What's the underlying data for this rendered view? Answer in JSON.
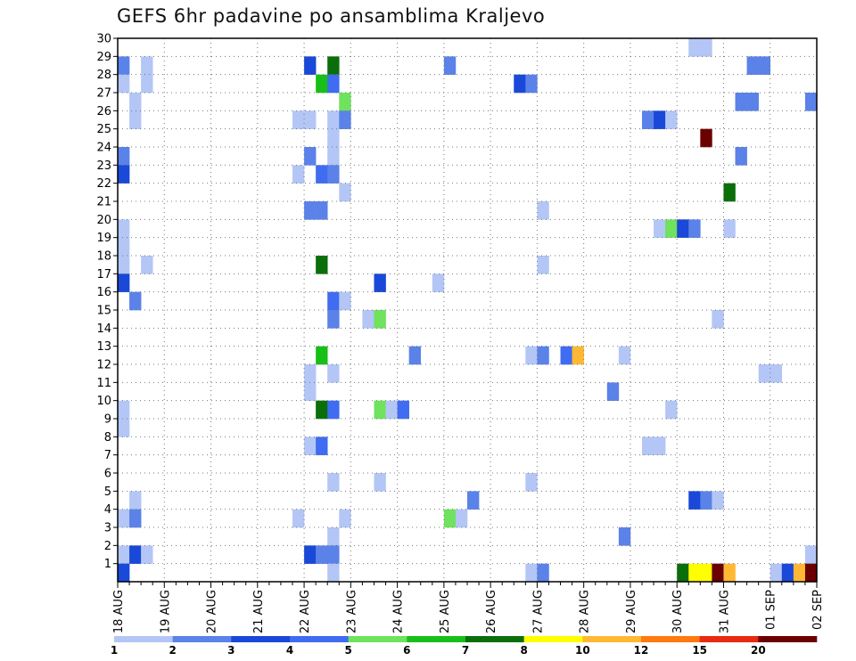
{
  "chart_data": {
    "type": "heatmap",
    "title": "GEFS 6hr padavine po ansamblima Kraljevo",
    "xlabel": "",
    "ylabel": "",
    "x_ticks": [
      "18 AUG",
      "19 AUG",
      "20 AUG",
      "21 AUG",
      "22 AUG",
      "23 AUG",
      "24 AUG",
      "25 AUG",
      "26 AUG",
      "27 AUG",
      "28 AUG",
      "29 AUG",
      "30 AUG",
      "31 AUG",
      "01 SEP",
      "02 SEP"
    ],
    "y_ticks": [
      "1",
      "2",
      "3",
      "4",
      "5",
      "6",
      "7",
      "8",
      "9",
      "10",
      "11",
      "12",
      "13",
      "14",
      "15",
      "16",
      "17",
      "18",
      "19",
      "20",
      "21",
      "22",
      "23",
      "24",
      "25",
      "26",
      "27",
      "28",
      "29",
      "30"
    ],
    "x_unit": "6-hour step from 18 AUG 00Z",
    "y_range": [
      0,
      30
    ],
    "grid": true,
    "colorbar": {
      "labels": [
        "1",
        "2",
        "3",
        "4",
        "5",
        "6",
        "7",
        "8",
        "10",
        "12",
        "15",
        "20"
      ],
      "colors": [
        "#b3c6f5",
        "#5a82e8",
        "#1a48d8",
        "#3f6cf0",
        "#6fe25e",
        "#18bf18",
        "#0a6e0a",
        "#ffff00",
        "#ffb833",
        "#ff7a10",
        "#e82a10",
        "#6a0000"
      ],
      "bins": [
        1,
        2,
        3,
        4,
        5,
        6,
        7,
        8,
        10,
        12,
        15,
        20
      ]
    },
    "cells": [
      {
        "x": 0,
        "y": 29,
        "v": 2.5
      },
      {
        "x": 0,
        "y": 28,
        "v": 1.5
      },
      {
        "x": 0,
        "y": 24,
        "v": 2.5
      },
      {
        "x": 0,
        "y": 23,
        "v": 3.5
      },
      {
        "x": 0,
        "y": 20,
        "v": 1.5
      },
      {
        "x": 0,
        "y": 19,
        "v": 1.5
      },
      {
        "x": 0,
        "y": 18,
        "v": 1.5
      },
      {
        "x": 0,
        "y": 17,
        "v": 3.5
      },
      {
        "x": 0,
        "y": 10,
        "v": 1.5
      },
      {
        "x": 0,
        "y": 9,
        "v": 1.5
      },
      {
        "x": 0,
        "y": 4,
        "v": 1.5
      },
      {
        "x": 0,
        "y": 2,
        "v": 1.5
      },
      {
        "x": 0,
        "y": 1,
        "v": 3.5
      },
      {
        "x": 1,
        "y": 27,
        "v": 1.5
      },
      {
        "x": 1,
        "y": 26,
        "v": 1.5
      },
      {
        "x": 1,
        "y": 16,
        "v": 2.5
      },
      {
        "x": 1,
        "y": 5,
        "v": 1.5
      },
      {
        "x": 1,
        "y": 4,
        "v": 2.5
      },
      {
        "x": 1,
        "y": 2,
        "v": 3.5
      },
      {
        "x": 2,
        "y": 29,
        "v": 1.5
      },
      {
        "x": 2,
        "y": 28,
        "v": 1.5
      },
      {
        "x": 2,
        "y": 18,
        "v": 1.5
      },
      {
        "x": 2,
        "y": 2,
        "v": 1.5
      },
      {
        "x": 15,
        "y": 26,
        "v": 1.5
      },
      {
        "x": 15,
        "y": 23,
        "v": 1.5
      },
      {
        "x": 15,
        "y": 4,
        "v": 1.5
      },
      {
        "x": 16,
        "y": 26,
        "v": 1.5
      },
      {
        "x": 16,
        "y": 21,
        "v": 2.5
      },
      {
        "x": 16,
        "y": 24,
        "v": 2.5
      },
      {
        "x": 16,
        "y": 29,
        "v": 3.5
      },
      {
        "x": 16,
        "y": 12,
        "v": 1.5
      },
      {
        "x": 16,
        "y": 11,
        "v": 1.5
      },
      {
        "x": 16,
        "y": 8,
        "v": 1.5
      },
      {
        "x": 16,
        "y": 2,
        "v": 3.5
      },
      {
        "x": 17,
        "y": 28,
        "v": 6.5
      },
      {
        "x": 17,
        "y": 23,
        "v": 4.5
      },
      {
        "x": 17,
        "y": 21,
        "v": 2.5
      },
      {
        "x": 17,
        "y": 18,
        "v": 7.5
      },
      {
        "x": 17,
        "y": 13,
        "v": 6.5
      },
      {
        "x": 17,
        "y": 10,
        "v": 7.5
      },
      {
        "x": 17,
        "y": 8,
        "v": 4.5
      },
      {
        "x": 17,
        "y": 2,
        "v": 2.5
      },
      {
        "x": 18,
        "y": 29,
        "v": 7.5
      },
      {
        "x": 18,
        "y": 28,
        "v": 4.5
      },
      {
        "x": 18,
        "y": 26,
        "v": 1.5
      },
      {
        "x": 18,
        "y": 25,
        "v": 1.5
      },
      {
        "x": 18,
        "y": 24,
        "v": 1.5
      },
      {
        "x": 18,
        "y": 23,
        "v": 2.5
      },
      {
        "x": 18,
        "y": 16,
        "v": 4.5
      },
      {
        "x": 18,
        "y": 15,
        "v": 2.5
      },
      {
        "x": 18,
        "y": 12,
        "v": 1.5
      },
      {
        "x": 18,
        "y": 10,
        "v": 4.5
      },
      {
        "x": 18,
        "y": 6,
        "v": 1.5
      },
      {
        "x": 18,
        "y": 3,
        "v": 1.5
      },
      {
        "x": 18,
        "y": 2,
        "v": 2.5
      },
      {
        "x": 18,
        "y": 1,
        "v": 1.5
      },
      {
        "x": 19,
        "y": 27,
        "v": 5.5
      },
      {
        "x": 19,
        "y": 26,
        "v": 2.5
      },
      {
        "x": 19,
        "y": 22,
        "v": 1.5
      },
      {
        "x": 19,
        "y": 16,
        "v": 1.5
      },
      {
        "x": 19,
        "y": 4,
        "v": 1.5
      },
      {
        "x": 21,
        "y": 15,
        "v": 1.5
      },
      {
        "x": 22,
        "y": 17,
        "v": 3.5
      },
      {
        "x": 22,
        "y": 15,
        "v": 5.5
      },
      {
        "x": 22,
        "y": 10,
        "v": 5.5
      },
      {
        "x": 22,
        "y": 6,
        "v": 1.5
      },
      {
        "x": 23,
        "y": 10,
        "v": 1.5
      },
      {
        "x": 24,
        "y": 10,
        "v": 4.5
      },
      {
        "x": 25,
        "y": 13,
        "v": 2.5
      },
      {
        "x": 27,
        "y": 17,
        "v": 1.5
      },
      {
        "x": 28,
        "y": 29,
        "v": 2.5
      },
      {
        "x": 28,
        "y": 4,
        "v": 5.5
      },
      {
        "x": 29,
        "y": 4,
        "v": 1.5
      },
      {
        "x": 30,
        "y": 5,
        "v": 2.5
      },
      {
        "x": 34,
        "y": 28,
        "v": 3.5
      },
      {
        "x": 35,
        "y": 28,
        "v": 2.5
      },
      {
        "x": 35,
        "y": 13,
        "v": 1.5
      },
      {
        "x": 35,
        "y": 6,
        "v": 1.5
      },
      {
        "x": 35,
        "y": 1,
        "v": 1.5
      },
      {
        "x": 36,
        "y": 21,
        "v": 1.5
      },
      {
        "x": 36,
        "y": 18,
        "v": 1.5
      },
      {
        "x": 36,
        "y": 13,
        "v": 2.5
      },
      {
        "x": 36,
        "y": 1,
        "v": 2.5
      },
      {
        "x": 38,
        "y": 13,
        "v": 4.5
      },
      {
        "x": 39,
        "y": 13,
        "v": 11
      },
      {
        "x": 42,
        "y": 11,
        "v": 2.5
      },
      {
        "x": 43,
        "y": 13,
        "v": 1.5
      },
      {
        "x": 43,
        "y": 3,
        "v": 2.5
      },
      {
        "x": 45,
        "y": 26,
        "v": 2.5
      },
      {
        "x": 45,
        "y": 8,
        "v": 1.5
      },
      {
        "x": 46,
        "y": 26,
        "v": 3.5
      },
      {
        "x": 46,
        "y": 20,
        "v": 1.5
      },
      {
        "x": 46,
        "y": 8,
        "v": 1.5
      },
      {
        "x": 47,
        "y": 26,
        "v": 1.5
      },
      {
        "x": 47,
        "y": 20,
        "v": 5.5
      },
      {
        "x": 47,
        "y": 10,
        "v": 1.5
      },
      {
        "x": 48,
        "y": 20,
        "v": 3.5
      },
      {
        "x": 48,
        "y": 1,
        "v": 7.5
      },
      {
        "x": 49,
        "y": 30,
        "v": 1.5
      },
      {
        "x": 49,
        "y": 20,
        "v": 2.5
      },
      {
        "x": 49,
        "y": 5,
        "v": 3.5
      },
      {
        "x": 49,
        "y": 1,
        "v": 9
      },
      {
        "x": 50,
        "y": 30,
        "v": 1.5
      },
      {
        "x": 50,
        "y": 25,
        "v": 20
      },
      {
        "x": 50,
        "y": 5,
        "v": 2.5
      },
      {
        "x": 50,
        "y": 1,
        "v": 9
      },
      {
        "x": 51,
        "y": 15,
        "v": 1.5
      },
      {
        "x": 51,
        "y": 5,
        "v": 1.5
      },
      {
        "x": 51,
        "y": 1,
        "v": 20
      },
      {
        "x": 52,
        "y": 20,
        "v": 1.5
      },
      {
        "x": 52,
        "y": 22,
        "v": 7.5
      },
      {
        "x": 52,
        "y": 1,
        "v": 11
      },
      {
        "x": 53,
        "y": 27,
        "v": 2.5
      },
      {
        "x": 53,
        "y": 24,
        "v": 2.5
      },
      {
        "x": 54,
        "y": 29,
        "v": 2.5
      },
      {
        "x": 54,
        "y": 27,
        "v": 2.5
      },
      {
        "x": 55,
        "y": 29,
        "v": 2.5
      },
      {
        "x": 55,
        "y": 12,
        "v": 1.5
      },
      {
        "x": 56,
        "y": 12,
        "v": 1.5
      },
      {
        "x": 56,
        "y": 1,
        "v": 1.5
      },
      {
        "x": 57,
        "y": 1,
        "v": 3.5
      },
      {
        "x": 58,
        "y": 1,
        "v": 11
      },
      {
        "x": 59,
        "y": 27,
        "v": 2.5
      },
      {
        "x": 59,
        "y": 2,
        "v": 1.5
      },
      {
        "x": 59,
        "y": 1,
        "v": 20
      }
    ]
  }
}
